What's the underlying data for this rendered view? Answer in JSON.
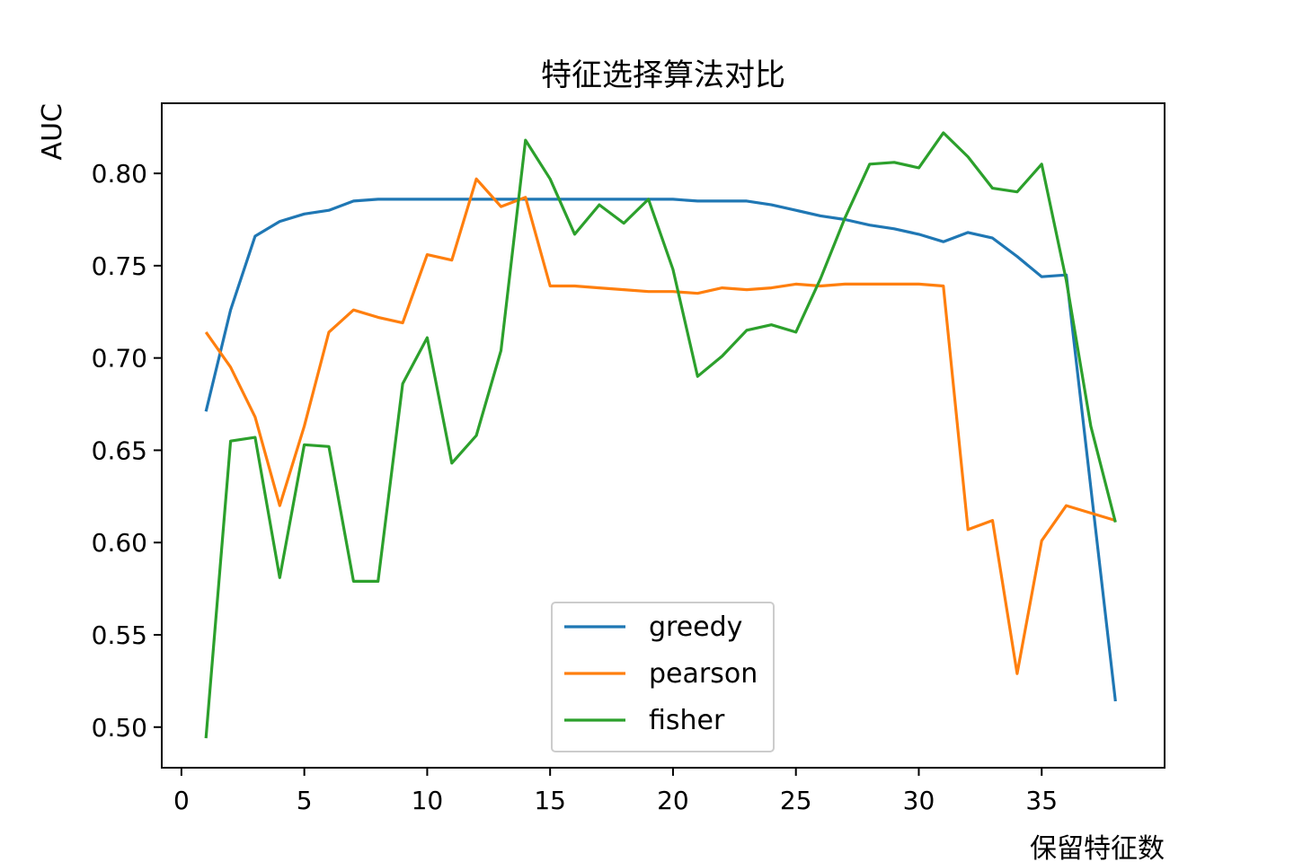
{
  "chart_data": {
    "type": "line",
    "title": "特征选择算法对比",
    "xlabel": "保留特征数",
    "ylabel": "AUC",
    "xlim": [
      -0.8,
      40
    ],
    "ylim": [
      0.478,
      0.838
    ],
    "xticks": [
      0,
      5,
      10,
      15,
      20,
      25,
      30,
      35
    ],
    "yticks": [
      0.5,
      0.55,
      0.6,
      0.65,
      0.7,
      0.75,
      0.8
    ],
    "ytick_labels": [
      "0.50",
      "0.55",
      "0.60",
      "0.65",
      "0.70",
      "0.75",
      "0.80"
    ],
    "grid": false,
    "legend_position": "lower center",
    "x": [
      1,
      2,
      3,
      4,
      5,
      6,
      7,
      8,
      9,
      10,
      11,
      12,
      13,
      14,
      15,
      16,
      17,
      18,
      19,
      20,
      21,
      22,
      23,
      24,
      25,
      26,
      27,
      28,
      29,
      30,
      31,
      32,
      33,
      34,
      35,
      36,
      37,
      38
    ],
    "series": [
      {
        "name": "greedy",
        "color": "#1f77b4",
        "x": [
          1,
          2,
          3,
          4,
          5,
          6,
          7,
          8,
          9,
          10,
          11,
          12,
          13,
          14,
          15,
          16,
          17,
          18,
          19,
          20,
          21,
          22,
          23,
          24,
          25,
          26,
          27,
          28,
          29,
          30,
          31,
          32,
          33,
          34,
          35,
          36,
          38
        ],
        "values": [
          0.671,
          0.726,
          0.766,
          0.774,
          0.778,
          0.78,
          0.785,
          0.786,
          0.786,
          0.786,
          0.786,
          0.786,
          0.786,
          0.786,
          0.786,
          0.786,
          0.786,
          0.786,
          0.786,
          0.786,
          0.785,
          0.785,
          0.785,
          0.783,
          0.78,
          0.777,
          0.775,
          0.772,
          0.77,
          0.767,
          0.763,
          0.768,
          0.765,
          0.755,
          0.744,
          0.745,
          0.514
        ]
      },
      {
        "name": "pearson",
        "color": "#ff7f0e",
        "x": [
          1,
          2,
          3,
          4,
          5,
          6,
          7,
          8,
          9,
          10,
          11,
          12,
          13,
          14,
          15,
          16,
          17,
          18,
          19,
          20,
          21,
          22,
          23,
          24,
          25,
          26,
          27,
          28,
          29,
          30,
          31,
          32,
          33,
          34,
          35,
          36,
          38
        ],
        "values": [
          0.714,
          0.695,
          0.668,
          0.62,
          0.663,
          0.714,
          0.726,
          0.722,
          0.719,
          0.756,
          0.753,
          0.797,
          0.782,
          0.787,
          0.739,
          0.739,
          0.738,
          0.737,
          0.736,
          0.736,
          0.735,
          0.738,
          0.737,
          0.738,
          0.74,
          0.739,
          0.74,
          0.74,
          0.74,
          0.74,
          0.739,
          0.607,
          0.612,
          0.529,
          0.601,
          0.62,
          0.612
        ]
      },
      {
        "name": "fisher",
        "color": "#2ca02c",
        "x": [
          1,
          2,
          3,
          4,
          5,
          6,
          7,
          8,
          9,
          10,
          11,
          12,
          13,
          14,
          15,
          16,
          17,
          18,
          19,
          20,
          21,
          22,
          23,
          24,
          25,
          26,
          27,
          28,
          29,
          30,
          31,
          32,
          33,
          34,
          35,
          36,
          37,
          38
        ],
        "values": [
          0.494,
          0.655,
          0.657,
          0.581,
          0.653,
          0.652,
          0.579,
          0.579,
          0.686,
          0.711,
          0.643,
          0.658,
          0.704,
          0.818,
          0.797,
          0.767,
          0.783,
          0.773,
          0.786,
          0.748,
          0.69,
          0.701,
          0.715,
          0.718,
          0.714,
          0.743,
          0.776,
          0.805,
          0.806,
          0.803,
          0.822,
          0.809,
          0.792,
          0.79,
          0.805,
          0.742,
          0.663,
          0.611
        ]
      }
    ]
  }
}
